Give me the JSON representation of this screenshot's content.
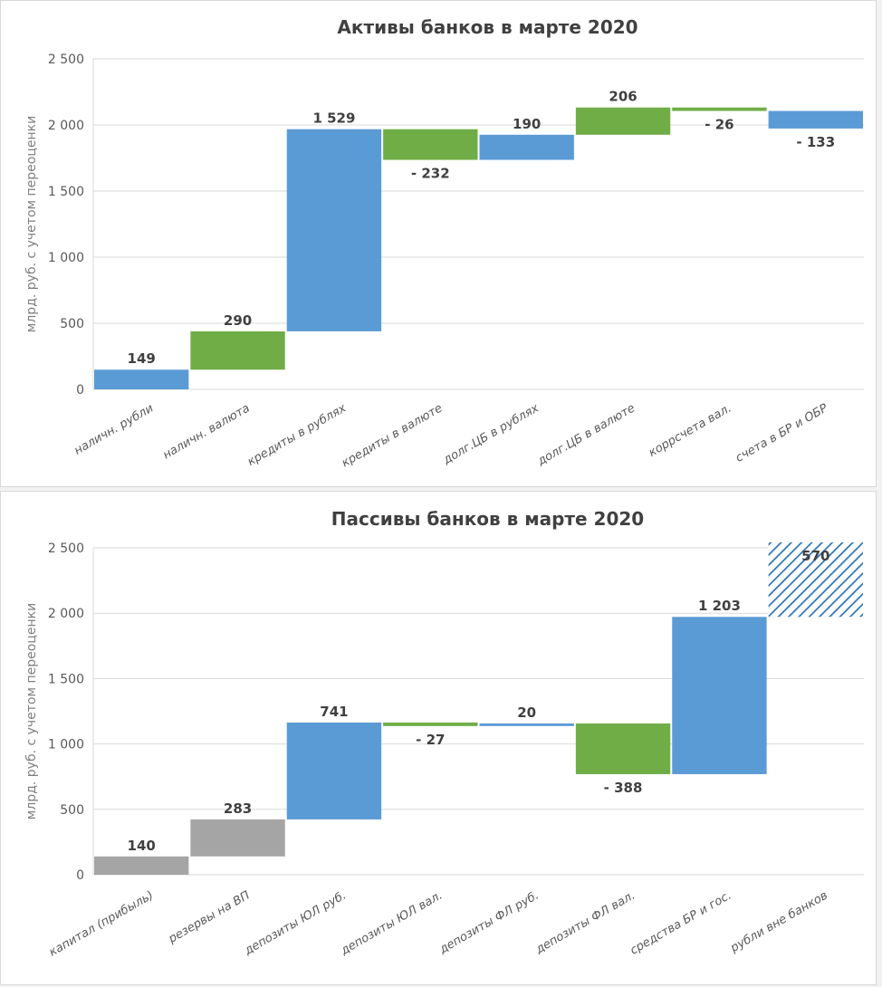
{
  "chart_data": [
    {
      "type": "waterfall",
      "title": "Активы банков в марте 2020",
      "xlabel": "",
      "ylabel": "млрд. руб. с учетом переоценки",
      "ylim": [
        0,
        2500
      ],
      "yticks": [
        0,
        500,
        1000,
        1500,
        2000,
        2500
      ],
      "ytick_labels": [
        "0",
        "500",
        "1 000",
        "1 500",
        "2 000",
        "2 500"
      ],
      "grid": true,
      "categories": [
        "наличн. рубли",
        "наличн. валюта",
        "кредиты в рублях",
        "кредиты в валюте",
        "долг.ЦБ в рублях",
        "долг.ЦБ в валюте",
        "коррсчета вал.",
        "счета в БР и ОБР"
      ],
      "values": [
        149,
        290,
        1529,
        -232,
        190,
        206,
        -26,
        -133
      ],
      "data_labels": [
        "149",
        "290",
        "1 529",
        "- 232",
        "190",
        "206",
        "- 26",
        "- 133"
      ],
      "bar_colors": [
        "#5b9bd5",
        "#70ad47",
        "#5b9bd5",
        "#70ad47",
        "#5b9bd5",
        "#70ad47",
        "#70ad47",
        "#5b9bd5"
      ],
      "hatched": [
        false,
        false,
        false,
        false,
        false,
        false,
        false,
        false
      ]
    },
    {
      "type": "waterfall",
      "title": "Пассивы банков в марте 2020",
      "xlabel": "",
      "ylabel": "млрд. руб. с учетом переоценки",
      "ylim": [
        0,
        2500
      ],
      "yticks": [
        0,
        500,
        1000,
        1500,
        2000,
        2500
      ],
      "ytick_labels": [
        "0",
        "500",
        "1 000",
        "1 500",
        "2 000",
        "2 500"
      ],
      "grid": true,
      "categories": [
        "капитал (прибыль)",
        "резервы на ВП",
        "депозиты ЮЛ руб.",
        "депозиты ЮЛ вал.",
        "депозиты ФЛ руб.",
        "депозиты ФЛ вал.",
        "средства БР и гос.",
        "рубли вне банков"
      ],
      "values": [
        140,
        283,
        741,
        -27,
        20,
        -388,
        1203,
        570
      ],
      "data_labels": [
        "140",
        "283",
        "741",
        "- 27",
        "20",
        "- 388",
        "1 203",
        "570"
      ],
      "bar_colors": [
        "#a5a5a5",
        "#a5a5a5",
        "#5b9bd5",
        "#70ad47",
        "#5b9bd5",
        "#70ad47",
        "#5b9bd5",
        "#5b9bd5"
      ],
      "hatched": [
        false,
        false,
        false,
        false,
        false,
        false,
        false,
        true
      ]
    }
  ]
}
